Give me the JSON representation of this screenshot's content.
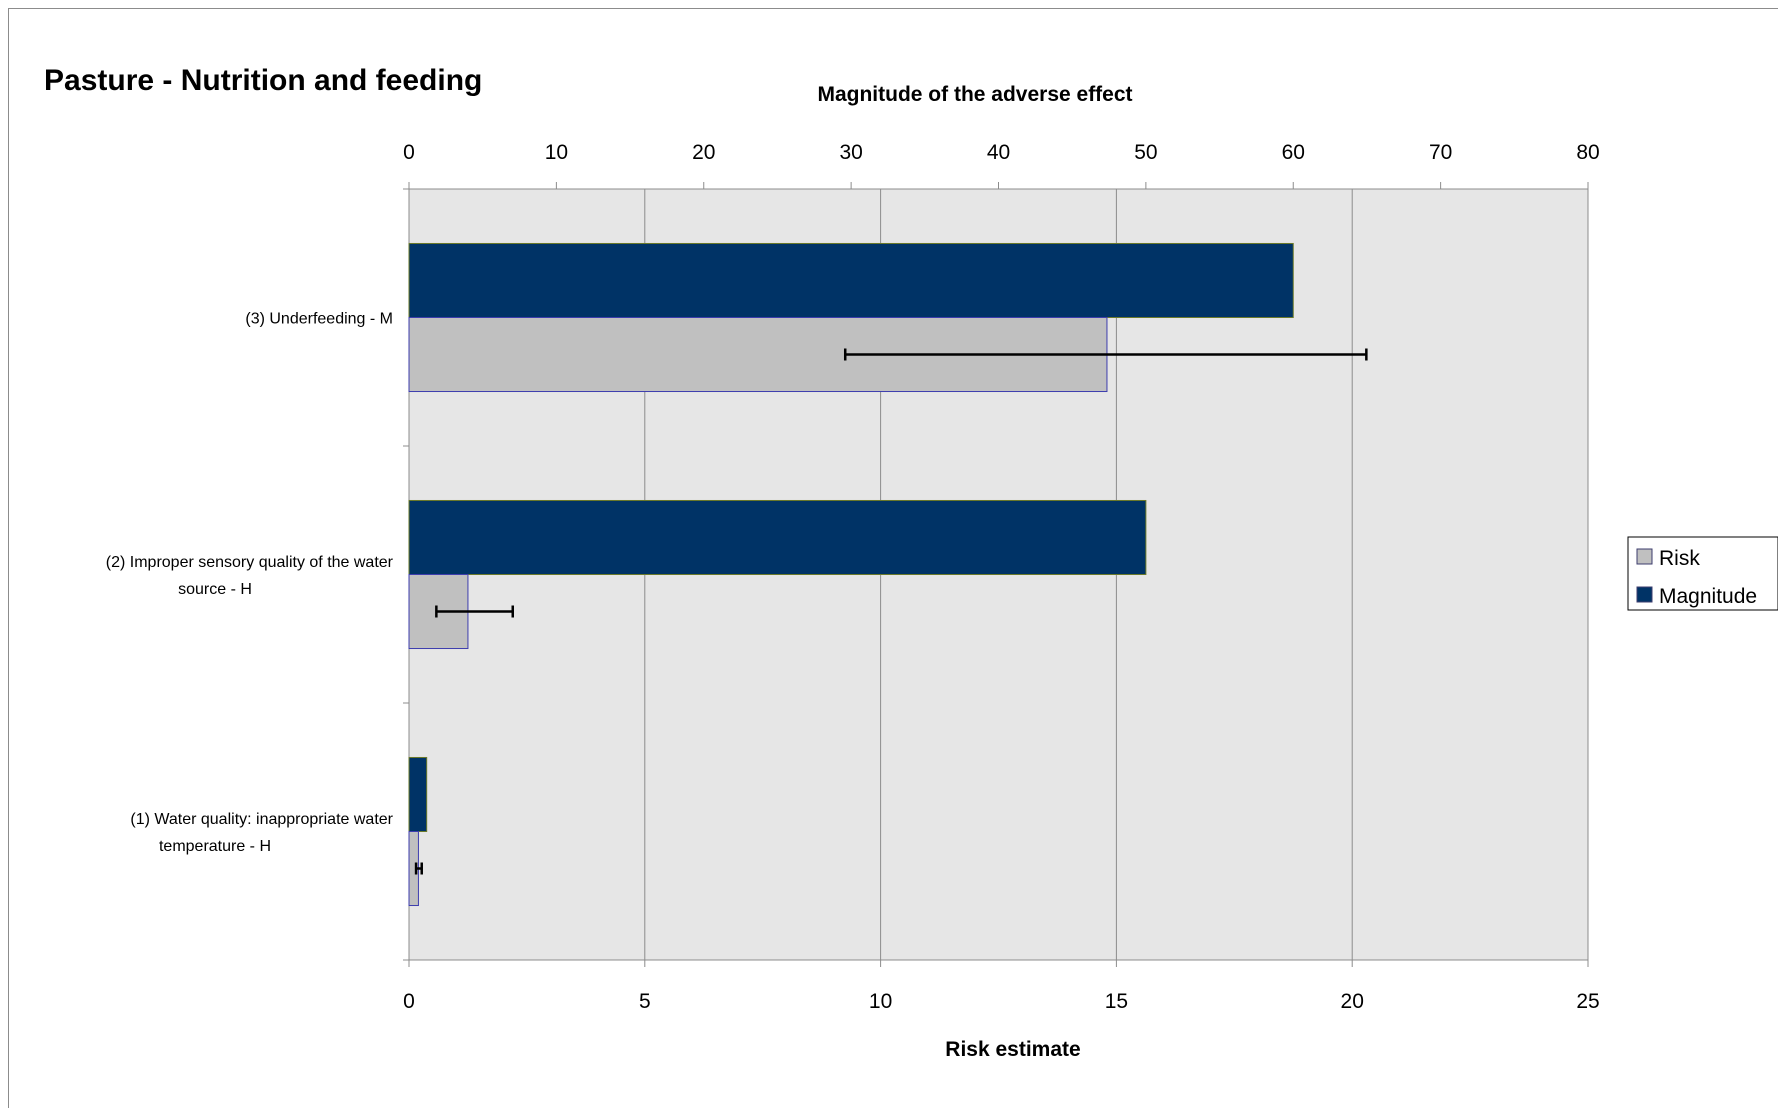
{
  "chart_data": {
    "type": "bar",
    "orientation": "horizontal",
    "title": "Pasture - Nutrition and feeding",
    "categories": [
      [
        "(3) Underfeeding - M"
      ],
      [
        "(2) Improper sensory quality of the water",
        "source - H"
      ],
      [
        "(1) Water quality: inappropriate water",
        "temperature - H"
      ]
    ],
    "series": [
      {
        "name": "Magnitude",
        "axis": "top",
        "color": "#003366",
        "values": [
          60,
          50,
          1.2
        ]
      },
      {
        "name": "Risk",
        "axis": "bottom",
        "color": "#c0c0c0",
        "values": [
          14.8,
          1.25,
          0.2
        ],
        "error_low": [
          9.25,
          0.58,
          0.15
        ],
        "error_high": [
          20.3,
          2.2,
          0.27
        ]
      }
    ],
    "x_top": {
      "label": "Magnitude of the adverse effect",
      "range": [
        0,
        80
      ],
      "ticks": [
        0,
        10,
        20,
        30,
        40,
        50,
        60,
        70,
        80
      ]
    },
    "x_bottom": {
      "label": "Risk estimate",
      "range": [
        0,
        25
      ],
      "ticks": [
        0,
        5,
        10,
        15,
        20,
        25
      ]
    },
    "grid": true,
    "plot_background": "#e6e6e6",
    "legend": {
      "position": "right",
      "entries": [
        "Risk",
        "Magnitude"
      ]
    }
  }
}
